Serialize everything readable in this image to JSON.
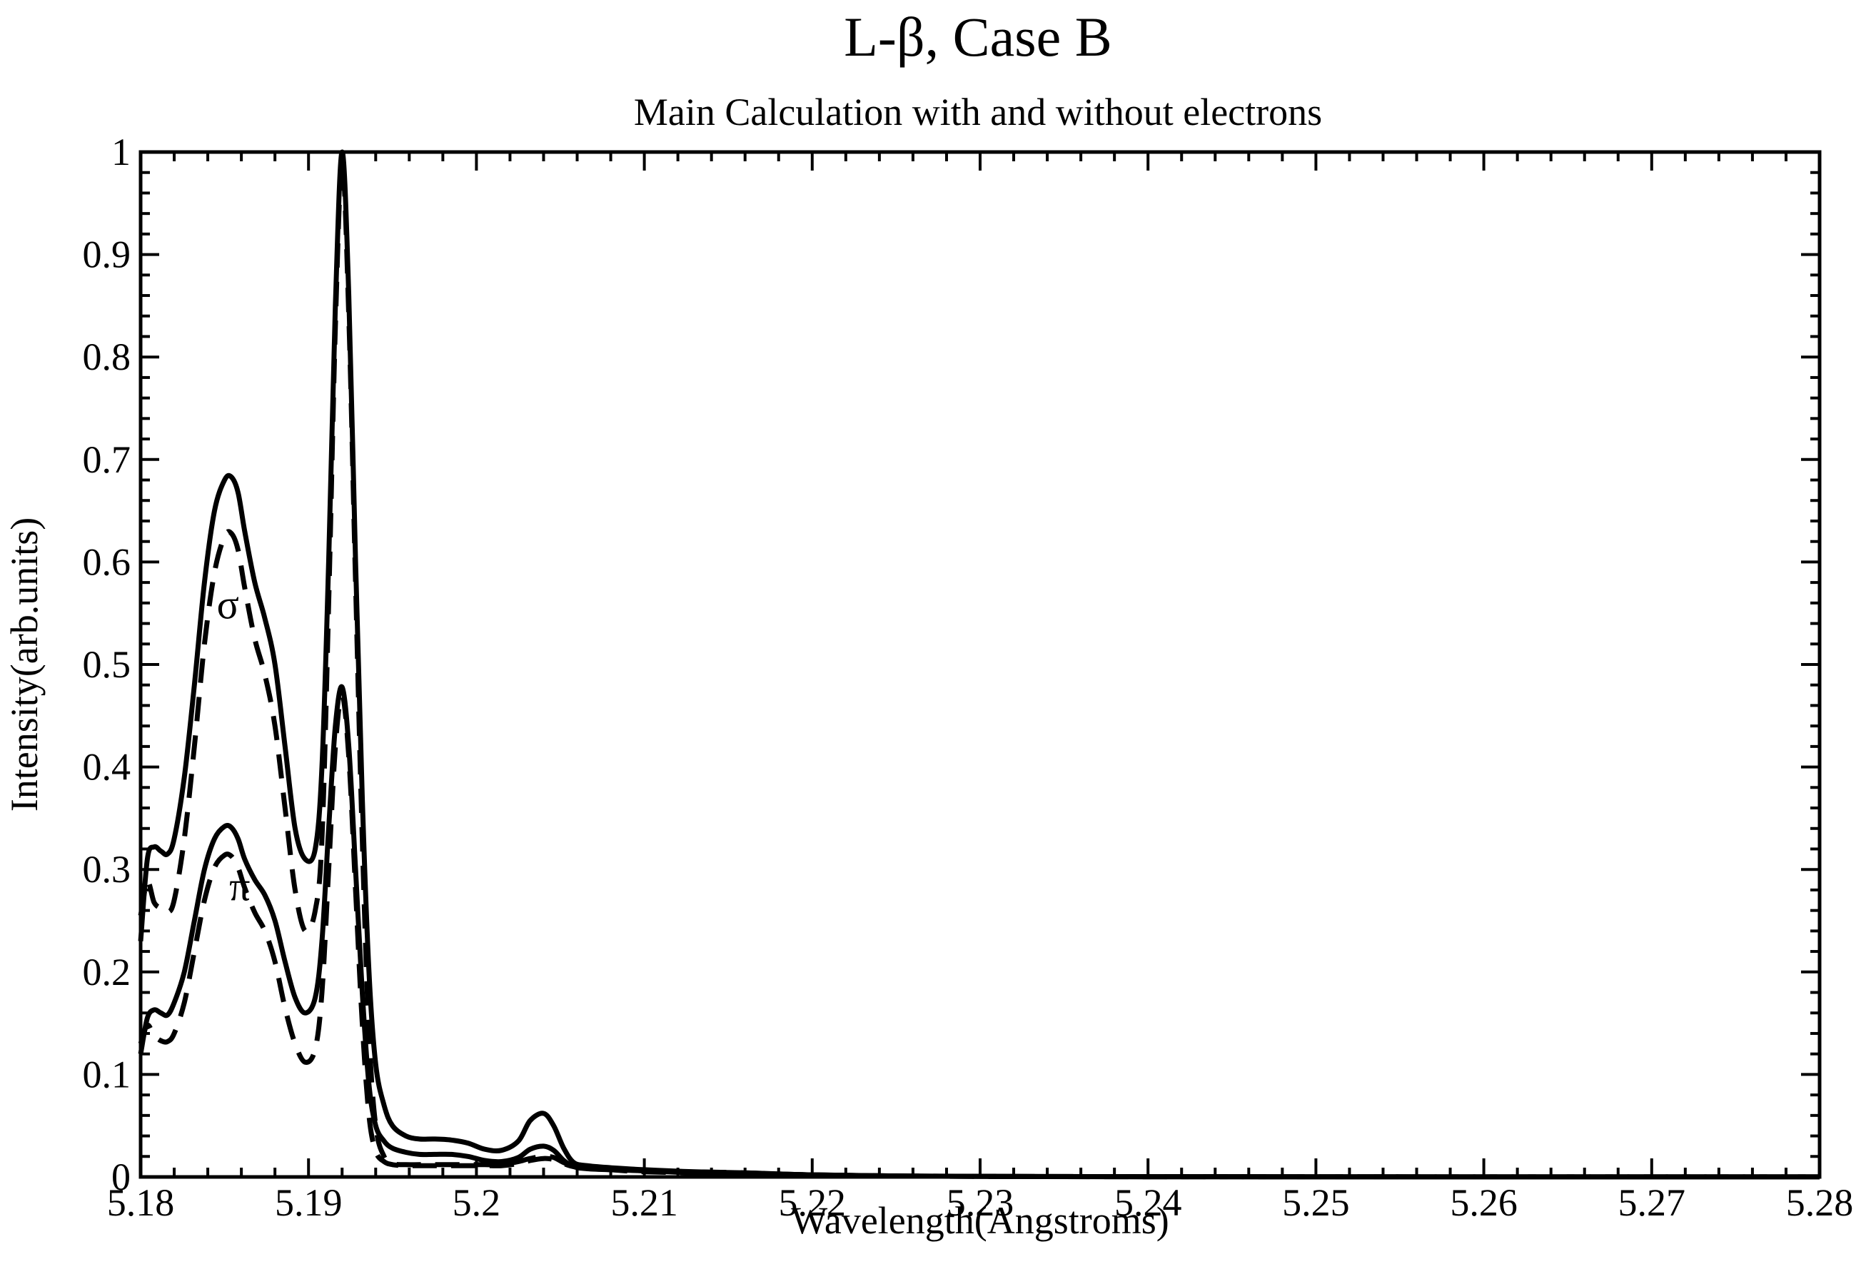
{
  "chart_data": {
    "type": "line",
    "title": "L-β,  Case B",
    "subtitle": "Main Calculation with and without electrons",
    "xlabel": "Wavelength(Angstroms)",
    "ylabel": "Intensity(arb.units)",
    "xlim": [
      5.18,
      5.28
    ],
    "ylim": [
      0,
      1
    ],
    "xticks": [
      5.18,
      5.19,
      5.2,
      5.21,
      5.22,
      5.23,
      5.24,
      5.25,
      5.26,
      5.27,
      5.28
    ],
    "xtick_labels": [
      "5.18",
      "5.19",
      "5.2",
      "5.21",
      "5.22",
      "5.23",
      "5.24",
      "5.25",
      "5.26",
      "5.27",
      "5.28"
    ],
    "yticks": [
      0,
      0.1,
      0.2,
      0.3,
      0.4,
      0.5,
      0.6,
      0.7,
      0.8,
      0.9,
      1
    ],
    "ytick_labels": [
      "0",
      "0.1",
      "0.2",
      "0.3",
      "0.4",
      "0.5",
      "0.6",
      "0.7",
      "0.8",
      "0.9",
      "1"
    ],
    "grid": false,
    "legend": "none",
    "annotations": [
      {
        "text": "σ",
        "x": 5.1852,
        "y": 0.545
      },
      {
        "text": "π",
        "x": 5.1859,
        "y": 0.27
      }
    ],
    "series": [
      {
        "style": "solid",
        "x": [
          5.18,
          5.1804,
          5.1808,
          5.1812,
          5.1816,
          5.182,
          5.1826,
          5.1832,
          5.1838,
          5.1844,
          5.185,
          5.1854,
          5.1858,
          5.1862,
          5.1868,
          5.1874,
          5.188,
          5.1886,
          5.1892,
          5.1898,
          5.1904,
          5.1908,
          5.1912,
          5.1916,
          5.192,
          5.1924,
          5.1928,
          5.1932,
          5.1936,
          5.194,
          5.1945,
          5.195,
          5.1958,
          5.1966,
          5.1975,
          5.1985,
          5.1995,
          5.2005,
          5.2015,
          5.2025,
          5.2032,
          5.204,
          5.2046,
          5.2052,
          5.2058,
          5.2066,
          5.208,
          5.21,
          5.213,
          5.216,
          5.22,
          5.225,
          5.23,
          5.24,
          5.25,
          5.26,
          5.27,
          5.28
        ],
        "y": [
          0.23,
          0.31,
          0.322,
          0.318,
          0.315,
          0.33,
          0.39,
          0.48,
          0.58,
          0.65,
          0.68,
          0.683,
          0.668,
          0.63,
          0.58,
          0.545,
          0.5,
          0.42,
          0.34,
          0.31,
          0.32,
          0.4,
          0.6,
          0.85,
          1.0,
          0.86,
          0.6,
          0.37,
          0.2,
          0.11,
          0.07,
          0.05,
          0.04,
          0.037,
          0.037,
          0.036,
          0.033,
          0.027,
          0.026,
          0.035,
          0.055,
          0.062,
          0.05,
          0.028,
          0.014,
          0.011,
          0.009,
          0.007,
          0.005,
          0.004,
          0.002,
          0.001,
          0.0006,
          0.0003,
          0.0002,
          0.0001,
          0.0001,
          0.0001
        ]
      },
      {
        "style": "dashed",
        "x": [
          5.18,
          5.1804,
          5.1808,
          5.1812,
          5.1816,
          5.182,
          5.1826,
          5.1832,
          5.1838,
          5.1844,
          5.185,
          5.1854,
          5.1858,
          5.1862,
          5.1868,
          5.1874,
          5.188,
          5.1886,
          5.1892,
          5.1898,
          5.1904,
          5.1908,
          5.1912,
          5.1916,
          5.192,
          5.1924,
          5.1928,
          5.1932,
          5.1936,
          5.194,
          5.1945,
          5.195,
          5.1958,
          5.1966,
          5.1975,
          5.1985,
          5.1995,
          5.2005,
          5.2015,
          5.2025,
          5.2032,
          5.204,
          5.2046,
          5.2052,
          5.2058,
          5.2066,
          5.208,
          5.21,
          5.213,
          5.216,
          5.22,
          5.225,
          5.23,
          5.24,
          5.25,
          5.26,
          5.27,
          5.28
        ],
        "y": [
          0.255,
          0.288,
          0.268,
          0.262,
          0.258,
          0.27,
          0.33,
          0.42,
          0.52,
          0.59,
          0.625,
          0.628,
          0.612,
          0.575,
          0.525,
          0.49,
          0.44,
          0.36,
          0.28,
          0.24,
          0.26,
          0.33,
          0.56,
          0.83,
          0.99,
          0.84,
          0.58,
          0.33,
          0.14,
          0.05,
          0.02,
          0.013,
          0.012,
          0.012,
          0.012,
          0.012,
          0.012,
          0.012,
          0.012,
          0.015,
          0.018,
          0.02,
          0.019,
          0.014,
          0.011,
          0.01,
          0.008,
          0.006,
          0.005,
          0.004,
          0.002,
          0.001,
          0.0006,
          0.0003,
          0.0002,
          0.0001,
          0.0001,
          0.0001
        ]
      },
      {
        "style": "solid",
        "x": [
          5.18,
          5.1804,
          5.1808,
          5.1812,
          5.1816,
          5.182,
          5.1826,
          5.1832,
          5.1838,
          5.1844,
          5.185,
          5.1854,
          5.1858,
          5.1862,
          5.1868,
          5.1874,
          5.188,
          5.1886,
          5.1892,
          5.1898,
          5.1904,
          5.1908,
          5.1912,
          5.1916,
          5.192,
          5.1924,
          5.1928,
          5.1932,
          5.1936,
          5.194,
          5.1945,
          5.195,
          5.1958,
          5.1966,
          5.1975,
          5.1985,
          5.1995,
          5.2005,
          5.2015,
          5.2025,
          5.2032,
          5.204,
          5.2046,
          5.2052,
          5.2058,
          5.2066,
          5.208,
          5.21,
          5.213,
          5.216,
          5.22,
          5.225,
          5.23,
          5.24,
          5.25,
          5.26,
          5.27,
          5.28
        ],
        "y": [
          0.12,
          0.155,
          0.163,
          0.16,
          0.158,
          0.17,
          0.2,
          0.25,
          0.3,
          0.33,
          0.342,
          0.341,
          0.33,
          0.31,
          0.29,
          0.275,
          0.25,
          0.21,
          0.175,
          0.16,
          0.175,
          0.23,
          0.34,
          0.44,
          0.478,
          0.42,
          0.3,
          0.18,
          0.09,
          0.05,
          0.035,
          0.028,
          0.024,
          0.022,
          0.022,
          0.022,
          0.02,
          0.016,
          0.015,
          0.019,
          0.027,
          0.03,
          0.026,
          0.016,
          0.01,
          0.008,
          0.007,
          0.006,
          0.004,
          0.003,
          0.002,
          0.001,
          0.0005,
          0.0002,
          0.0001,
          0.0001,
          0.0001,
          0.0001
        ]
      },
      {
        "style": "dashed",
        "x": [
          5.18,
          5.1804,
          5.1808,
          5.1812,
          5.1816,
          5.182,
          5.1826,
          5.1832,
          5.1838,
          5.1844,
          5.185,
          5.1854,
          5.1858,
          5.1862,
          5.1868,
          5.1874,
          5.188,
          5.1886,
          5.1892,
          5.1898,
          5.1904,
          5.1908,
          5.1912,
          5.1916,
          5.192,
          5.1924,
          5.1928,
          5.1932,
          5.1936,
          5.194,
          5.1945,
          5.195,
          5.1958,
          5.1966,
          5.1975,
          5.1985,
          5.1995,
          5.2005,
          5.2015,
          5.2025,
          5.2032,
          5.204,
          5.2046,
          5.2052,
          5.2058,
          5.2066,
          5.208,
          5.21,
          5.213,
          5.216,
          5.22,
          5.225,
          5.23,
          5.24,
          5.25,
          5.26,
          5.27,
          5.28
        ],
        "y": [
          0.13,
          0.148,
          0.138,
          0.133,
          0.132,
          0.14,
          0.17,
          0.22,
          0.27,
          0.302,
          0.314,
          0.313,
          0.302,
          0.282,
          0.258,
          0.24,
          0.21,
          0.165,
          0.13,
          0.112,
          0.125,
          0.18,
          0.3,
          0.42,
          0.47,
          0.41,
          0.28,
          0.15,
          0.06,
          0.025,
          0.015,
          0.012,
          0.011,
          0.011,
          0.011,
          0.011,
          0.011,
          0.011,
          0.011,
          0.013,
          0.016,
          0.018,
          0.017,
          0.013,
          0.01,
          0.009,
          0.007,
          0.005,
          0.004,
          0.003,
          0.002,
          0.001,
          0.0005,
          0.0002,
          0.0001,
          0.0001,
          0.0001,
          0.0001
        ]
      }
    ]
  }
}
